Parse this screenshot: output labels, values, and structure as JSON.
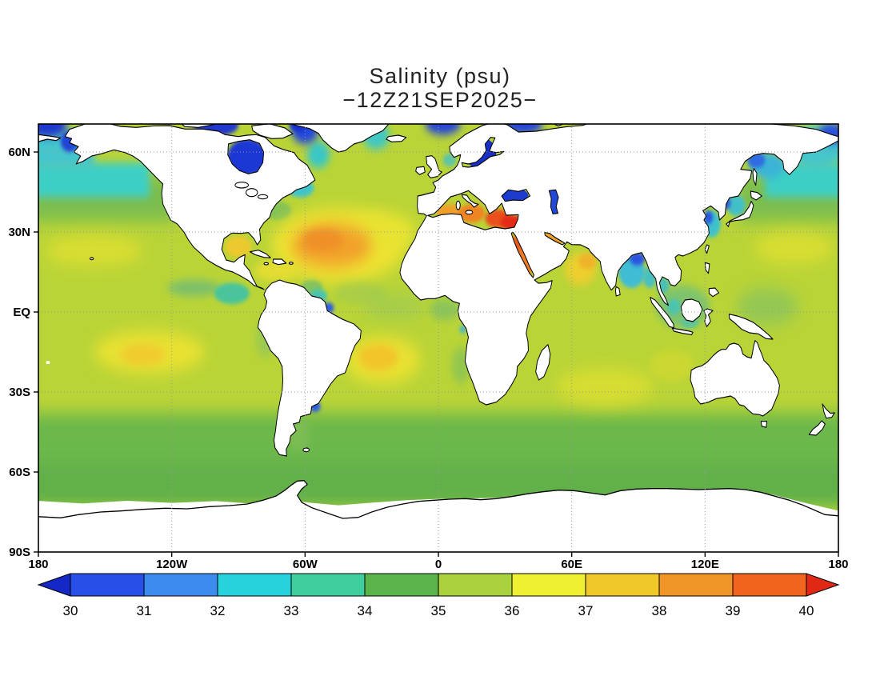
{
  "title": {
    "line1": "Salinity (psu)",
    "line2": "−12Z21SEP2025−"
  },
  "axes": {
    "lat_labels": [
      "60N",
      "30N",
      "EQ",
      "30S",
      "60S",
      "90S"
    ],
    "lat_values": [
      60,
      30,
      0,
      -30,
      -60,
      -90
    ],
    "lon_labels": [
      "180",
      "120W",
      "60W",
      "0",
      "60E",
      "120E",
      "180"
    ],
    "lon_values": [
      -180,
      -120,
      -60,
      0,
      60,
      120,
      180
    ]
  },
  "colorbar": {
    "tick_labels": [
      "30",
      "31",
      "32",
      "33",
      "34",
      "35",
      "36",
      "37",
      "38",
      "39",
      "40"
    ],
    "segment_colors": [
      "#2850e6",
      "#3c8cf0",
      "#28d2dc",
      "#3fcf9e",
      "#5ab44b",
      "#aad23c",
      "#f0f032",
      "#f0c82a",
      "#f09628",
      "#f0641e"
    ],
    "arrow_left_color": "#1428c8",
    "arrow_right_color": "#e02814"
  },
  "chart_data": {
    "type": "heatmap",
    "title": "Salinity (psu)",
    "subtitle": "−12Z21SEP2025−",
    "variable": "sea surface salinity",
    "units": "psu",
    "colorbar_ticks": [
      30,
      31,
      32,
      33,
      34,
      35,
      36,
      37,
      38,
      39,
      40
    ],
    "colorbar_palette": [
      "#1428c8",
      "#2850e6",
      "#3c8cf0",
      "#28d2dc",
      "#3fcf9e",
      "#5ab44b",
      "#aad23c",
      "#f0f032",
      "#f0c82a",
      "#f09628",
      "#f0641e",
      "#e02814"
    ],
    "lat_ticks": [
      "60N",
      "30N",
      "EQ",
      "30S",
      "60S",
      "90S"
    ],
    "lon_ticks": [
      "180",
      "120W",
      "60W",
      "0",
      "60E",
      "120E",
      "180"
    ],
    "grid": true,
    "legend_position": "bottom",
    "notable_high_salinity": [
      "Eastern Mediterranean ~39-40",
      "Red Sea / Persian Gulf ~38",
      "North Atlantic subtropical gyre ~37-38",
      "South Atlantic subtropical gyre ~37",
      "South Pacific subtropical patch ~37",
      "Arabian Sea ~37"
    ],
    "notable_low_salinity": [
      "Hudson Bay / Arctic inlets <30",
      "Baltic Sea <30",
      "Black Sea ~30-31",
      "Bay of Bengal ~31-33",
      "Subpolar North Pacific / Bering Sea ~32-33",
      "Amazon and Rio de la Plata outflows ~31-32"
    ]
  }
}
